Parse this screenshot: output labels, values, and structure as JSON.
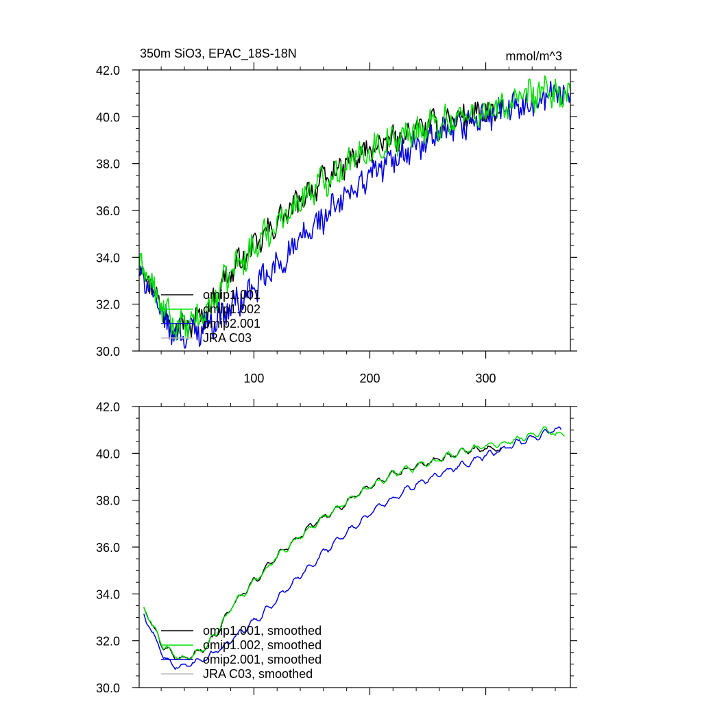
{
  "figure": {
    "title_left": "350m SiO3, EPAC_18S-18N",
    "title_right": "mmol/m^3"
  },
  "colors": {
    "omip1_001": "#000000",
    "omip1_002": "#00e000",
    "omip2_001": "#0000dd",
    "jra_c03": "#bbbbbb"
  },
  "chart_data": [
    {
      "type": "line",
      "panel": "top",
      "title": "350m SiO3, EPAC_18S-18N",
      "units": "mmol/m^3",
      "xlim": [
        1,
        373
      ],
      "ylim": [
        30,
        42
      ],
      "x_ticks": [
        100,
        200,
        300
      ],
      "x_tick_labels": [
        "100",
        "200",
        "300"
      ],
      "y_ticks": [
        30,
        32,
        34,
        36,
        38,
        40,
        42
      ],
      "y_tick_labels": [
        "30.0",
        "32.0",
        "34.0",
        "36.0",
        "38.0",
        "40.0",
        "42.0"
      ],
      "legend_position": "lower-left",
      "series": [
        {
          "name": "omip1.001",
          "color_key": "omip1_001",
          "x_end": 313,
          "noise": 0.45,
          "anchors": [
            [
              1,
              33.3
            ],
            [
              5,
              33.7
            ],
            [
              12,
              32.7
            ],
            [
              20,
              31.9
            ],
            [
              30,
              31.2
            ],
            [
              40,
              31.0
            ],
            [
              50,
              31.3
            ],
            [
              60,
              31.7
            ],
            [
              70,
              32.6
            ],
            [
              80,
              33.4
            ],
            [
              100,
              34.4
            ],
            [
              120,
              35.5
            ],
            [
              150,
              36.9
            ],
            [
              180,
              38.0
            ],
            [
              200,
              38.6
            ],
            [
              220,
              39.0
            ],
            [
              250,
              39.6
            ],
            [
              280,
              40.0
            ],
            [
              300,
              40.1
            ],
            [
              313,
              40.2
            ]
          ]
        },
        {
          "name": "omip1.002",
          "color_key": "omip1_002",
          "x_end": 373,
          "noise": 0.55,
          "anchors": [
            [
              1,
              33.3
            ],
            [
              5,
              33.8
            ],
            [
              12,
              32.7
            ],
            [
              20,
              31.9
            ],
            [
              30,
              31.2
            ],
            [
              40,
              31.0
            ],
            [
              50,
              31.3
            ],
            [
              60,
              31.7
            ],
            [
              70,
              32.6
            ],
            [
              80,
              33.4
            ],
            [
              100,
              34.4
            ],
            [
              120,
              35.5
            ],
            [
              150,
              36.9
            ],
            [
              180,
              38.0
            ],
            [
              200,
              38.6
            ],
            [
              220,
              39.0
            ],
            [
              250,
              39.6
            ],
            [
              280,
              40.0
            ],
            [
              300,
              40.2
            ],
            [
              330,
              40.7
            ],
            [
              350,
              41.1
            ],
            [
              365,
              40.9
            ],
            [
              373,
              40.8
            ]
          ]
        },
        {
          "name": "omip2.001",
          "color_key": "omip2_001",
          "x_end": 373,
          "noise": 0.55,
          "anchors": [
            [
              1,
              33.2
            ],
            [
              5,
              33.3
            ],
            [
              12,
              32.5
            ],
            [
              20,
              31.5
            ],
            [
              30,
              30.8
            ],
            [
              40,
              30.7
            ],
            [
              50,
              30.9
            ],
            [
              60,
              31.2
            ],
            [
              70,
              31.4
            ],
            [
              80,
              31.9
            ],
            [
              100,
              32.6
            ],
            [
              120,
              33.6
            ],
            [
              150,
              35.2
            ],
            [
              180,
              36.6
            ],
            [
              200,
              37.5
            ],
            [
              230,
              38.5
            ],
            [
              250,
              38.9
            ],
            [
              280,
              39.6
            ],
            [
              300,
              40.0
            ],
            [
              330,
              40.4
            ],
            [
              350,
              40.9
            ],
            [
              360,
              41.1
            ],
            [
              373,
              40.8
            ]
          ]
        },
        {
          "name": "JRA C03",
          "color_key": "jra_c03",
          "x_end": 0,
          "noise": 0,
          "anchors": []
        }
      ]
    },
    {
      "type": "line",
      "panel": "bottom",
      "xlim": [
        1,
        373
      ],
      "ylim": [
        30,
        42
      ],
      "x_ticks": [
        100,
        200,
        300
      ],
      "y_ticks": [
        30,
        32,
        34,
        36,
        38,
        40,
        42
      ],
      "y_tick_labels": [
        "30.0",
        "32.0",
        "34.0",
        "36.0",
        "38.0",
        "40.0",
        "42.0"
      ],
      "legend_position": "lower-left",
      "series": [
        {
          "name": "omip1.001, smoothed",
          "color_key": "omip1_001",
          "x_start": 5,
          "x_end": 313,
          "noise": 0.12,
          "anchors": [
            [
              5,
              33.4
            ],
            [
              12,
              32.7
            ],
            [
              20,
              31.9
            ],
            [
              30,
              31.4
            ],
            [
              40,
              31.2
            ],
            [
              50,
              31.5
            ],
            [
              60,
              31.8
            ],
            [
              70,
              32.5
            ],
            [
              80,
              33.4
            ],
            [
              100,
              34.5
            ],
            [
              120,
              35.6
            ],
            [
              150,
              36.9
            ],
            [
              180,
              37.9
            ],
            [
              200,
              38.6
            ],
            [
              220,
              39.1
            ],
            [
              250,
              39.6
            ],
            [
              280,
              40.1
            ],
            [
              300,
              40.2
            ],
            [
              313,
              40.2
            ]
          ]
        },
        {
          "name": "omip1.002, smoothed",
          "color_key": "omip1_002",
          "x_start": 5,
          "x_end": 368,
          "noise": 0.12,
          "anchors": [
            [
              5,
              33.4
            ],
            [
              12,
              32.7
            ],
            [
              20,
              31.9
            ],
            [
              30,
              31.4
            ],
            [
              40,
              31.2
            ],
            [
              50,
              31.5
            ],
            [
              60,
              31.8
            ],
            [
              70,
              32.5
            ],
            [
              80,
              33.4
            ],
            [
              100,
              34.5
            ],
            [
              120,
              35.6
            ],
            [
              150,
              36.9
            ],
            [
              180,
              37.9
            ],
            [
              200,
              38.6
            ],
            [
              220,
              39.1
            ],
            [
              250,
              39.6
            ],
            [
              280,
              40.1
            ],
            [
              300,
              40.3
            ],
            [
              330,
              40.6
            ],
            [
              350,
              41.0
            ],
            [
              360,
              40.8
            ],
            [
              368,
              40.8
            ]
          ]
        },
        {
          "name": "omip2.001, smoothed",
          "color_key": "omip2_001",
          "x_start": 5,
          "x_end": 365,
          "noise": 0.12,
          "anchors": [
            [
              5,
              33.1
            ],
            [
              12,
              32.4
            ],
            [
              20,
              31.5
            ],
            [
              30,
              31.0
            ],
            [
              40,
              30.9
            ],
            [
              50,
              31.1
            ],
            [
              60,
              31.3
            ],
            [
              70,
              31.6
            ],
            [
              80,
              32.0
            ],
            [
              100,
              32.8
            ],
            [
              120,
              33.8
            ],
            [
              150,
              35.3
            ],
            [
              180,
              36.6
            ],
            [
              200,
              37.4
            ],
            [
              230,
              38.4
            ],
            [
              250,
              38.9
            ],
            [
              280,
              39.5
            ],
            [
              300,
              39.9
            ],
            [
              330,
              40.5
            ],
            [
              350,
              40.8
            ],
            [
              360,
              41.1
            ],
            [
              365,
              40.9
            ]
          ]
        },
        {
          "name": "JRA C03, smoothed",
          "color_key": "jra_c03",
          "x_start": 0,
          "x_end": 0,
          "noise": 0,
          "anchors": []
        }
      ]
    }
  ]
}
